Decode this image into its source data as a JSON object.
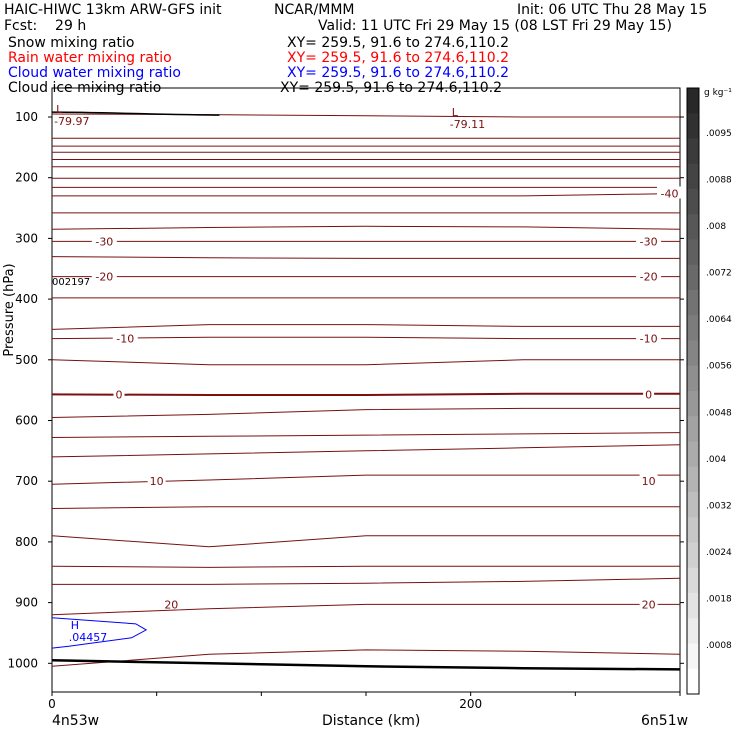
{
  "header": {
    "model_title": "HAIC-HIWC 13km ARW-GFS init",
    "center": "NCAR/MMM",
    "init": "Init: 06 UTC Thu 28 May 15",
    "fcst": "Fcst:    29 h",
    "valid": "Valid: 11 UTC Fri 29 May 15 (08 LST Fri 29 May 15)"
  },
  "legend": [
    {
      "name": "Snow mixing ratio",
      "xy": "XY= 259.5, 91.6 to 274.6,110.2",
      "color": "#000000"
    },
    {
      "name": "Rain water mixing ratio",
      "xy": "XY= 259.5, 91.6 to 274.6,110.2",
      "color": "#ff0000"
    },
    {
      "name": "Cloud water mixing ratio",
      "xy": "XY= 259.5, 91.6 to 274.6,110.2",
      "color": "#0000ff"
    },
    {
      "name": "Cloud ice mixing ratio",
      "xy": "XY= 259.5, 91.6 to 274.6,110.2",
      "color": "#000000"
    }
  ],
  "footer": {
    "left": "4n53w",
    "xlabel": "Distance (km)",
    "right": "6n51w"
  },
  "colorbar": {
    "unit": "g kg⁻¹",
    "labels": [
      ".0095",
      ".0088",
      ".008",
      ".0072",
      ".0064",
      ".0056",
      ".0048",
      ".004",
      ".0032",
      ".0024",
      ".0018",
      ".0008"
    ]
  },
  "chart_data": {
    "type": "contour",
    "ylabel": "Pressure (hPa)",
    "xlabel": "Distance (km)",
    "xlim": [
      0,
      300
    ],
    "ylim": [
      1050,
      50
    ],
    "x_ticks": [
      0,
      200
    ],
    "y_ticks": [
      100,
      200,
      300,
      400,
      500,
      600,
      700,
      800,
      900,
      1000
    ],
    "contour_color": "#7a1010",
    "temperature_labels": [
      {
        "text": "-40",
        "x": 295,
        "p": 226
      },
      {
        "text": "-30",
        "x": 25,
        "p": 305
      },
      {
        "text": "-30",
        "x": 285,
        "p": 305
      },
      {
        "text": "-20",
        "x": 25,
        "p": 363
      },
      {
        "text": "-20",
        "x": 285,
        "p": 363
      },
      {
        "text": "-10",
        "x": 35,
        "p": 465
      },
      {
        "text": "-10",
        "x": 285,
        "p": 465
      },
      {
        "text": "0",
        "x": 32,
        "p": 557
      },
      {
        "text": "0",
        "x": 285,
        "p": 557
      },
      {
        "text": "10",
        "x": 50,
        "p": 700
      },
      {
        "text": "10",
        "x": 285,
        "p": 700
      },
      {
        "text": "20",
        "x": 57,
        "p": 903
      },
      {
        "text": "20",
        "x": 285,
        "p": 903
      }
    ],
    "extrema": [
      {
        "kind": "L",
        "value": "-79.97",
        "x": 1,
        "p": 100
      },
      {
        "kind": "L",
        "value": "-79.11",
        "x": 190,
        "p": 105
      },
      {
        "kind": "H",
        "value": ".04457",
        "x": 8,
        "p": 950,
        "color": "#0000ff"
      }
    ],
    "side_label": {
      "text": "002197",
      "p": 383
    },
    "terrain_p": [
      995,
      1000,
      1005,
      1008,
      1010
    ]
  }
}
